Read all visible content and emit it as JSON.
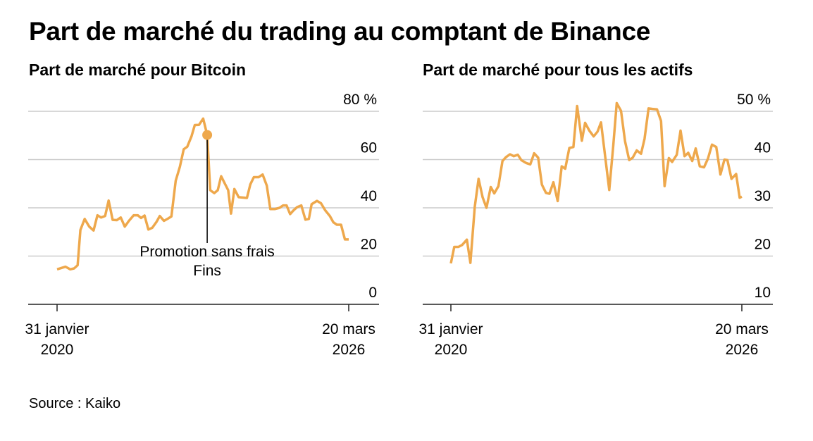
{
  "title": "Part de marché du trading au comptant de Binance",
  "source": "Source : Kaiko",
  "line_color": "#eea84c",
  "chart_data": [
    {
      "type": "line",
      "title": "Part de marché pour Bitcoin",
      "ylim": [
        0,
        80
      ],
      "yticks": [
        0,
        20,
        40,
        60,
        80
      ],
      "ytick_labels": [
        "0",
        "20",
        "40",
        "60",
        "80 %"
      ],
      "grid": true,
      "xlim": [
        "2020-01-31",
        "2026-03-20"
      ],
      "xtick_labels": [
        {
          "date": "2020-01-31",
          "line1": "31 janvier",
          "line2": "2020"
        },
        {
          "date": "2026-03-20",
          "line1": "20 mars",
          "line2": "2026"
        }
      ],
      "annotation": {
        "date": "2023-03-29",
        "value": 70.2,
        "line1": "Promotion sans frais",
        "line2": "Fins"
      },
      "x": [
        "2020-01-31",
        "2020-04-05",
        "2020-05-11",
        "2020-06-10",
        "2020-07-07",
        "2020-07-28",
        "2020-08-30",
        "2020-10-04",
        "2020-11-06",
        "2020-12-06",
        "2021-01-03",
        "2021-02-03",
        "2021-03-02",
        "2021-04-02",
        "2021-05-04",
        "2021-06-03",
        "2021-07-04",
        "2021-08-05",
        "2021-09-10",
        "2021-10-12",
        "2021-11-06",
        "2021-12-03",
        "2022-01-01",
        "2022-01-31",
        "2022-03-05",
        "2022-03-30",
        "2022-05-01",
        "2022-06-02",
        "2022-06-27",
        "2022-07-30",
        "2022-08-31",
        "2022-09-30",
        "2022-10-27",
        "2022-11-29",
        "2022-12-24",
        "2023-01-25",
        "2023-02-26",
        "2023-03-29",
        "2023-04-21",
        "2023-05-22",
        "2023-06-18",
        "2023-07-14",
        "2023-08-10",
        "2023-09-06",
        "2023-09-28",
        "2023-10-24",
        "2023-11-26",
        "2024-01-28",
        "2024-02-23",
        "2024-03-21",
        "2024-04-27",
        "2024-05-28",
        "2024-06-29",
        "2024-07-26",
        "2024-08-31",
        "2024-10-05",
        "2024-11-01",
        "2024-11-28",
        "2024-12-25",
        "2025-01-21",
        "2025-02-17",
        "2025-03-21",
        "2025-04-21",
        "2025-05-18",
        "2025-06-08",
        "2025-07-19",
        "2025-08-19",
        "2025-09-20",
        "2025-10-26",
        "2025-11-22",
        "2025-12-19",
        "2026-01-20",
        "2026-02-19",
        "2026-03-20"
      ],
      "y": [
        14.5,
        15.6,
        14.5,
        14.9,
        16.2,
        30.8,
        35.4,
        32.2,
        30.6,
        36.9,
        36.0,
        36.6,
        43.0,
        35.0,
        34.9,
        36.0,
        32.2,
        34.6,
        36.9,
        36.9,
        35.8,
        36.8,
        31.0,
        31.7,
        34.2,
        36.6,
        34.6,
        35.6,
        36.4,
        51.2,
        57.0,
        64.3,
        65.3,
        69.7,
        74.3,
        74.4,
        77.0,
        70.2,
        47.3,
        46.1,
        47.3,
        53.1,
        50.2,
        47.3,
        37.6,
        47.8,
        44.4,
        44.1,
        49.7,
        52.7,
        52.7,
        53.8,
        49.2,
        39.5,
        39.5,
        40.0,
        41.0,
        41.0,
        37.4,
        39.0,
        40.3,
        41.0,
        35.1,
        35.4,
        41.5,
        42.9,
        41.9,
        39.0,
        36.6,
        34.0,
        33.0,
        33.0,
        26.9,
        26.9
      ]
    },
    {
      "type": "line",
      "title": "Part de marché pour tous les actifs",
      "ylim": [
        10,
        50
      ],
      "yticks": [
        10,
        20,
        30,
        40,
        50
      ],
      "ytick_labels": [
        "10",
        "20",
        "30",
        "40",
        "50 %"
      ],
      "grid": true,
      "xlim": [
        "2020-01-31",
        "2026-03-20"
      ],
      "xtick_labels": [
        {
          "date": "2020-01-31",
          "line1": "31 janvier",
          "line2": "2020"
        },
        {
          "date": "2026-03-20",
          "line1": "20 mars",
          "line2": "2026"
        }
      ],
      "x": [
        "2020-01-31",
        "2020-02-26",
        "2020-03-29",
        "2020-04-27",
        "2020-06-02",
        "2020-06-29",
        "2020-08-02",
        "2020-08-31",
        "2020-10-01",
        "2020-10-31",
        "2020-12-03",
        "2020-12-30",
        "2021-01-31",
        "2021-03-03",
        "2021-03-30",
        "2021-04-30",
        "2021-05-29",
        "2021-06-29",
        "2021-07-26",
        "2021-08-31",
        "2021-10-03",
        "2021-11-02",
        "2021-12-03",
        "2022-01-01",
        "2022-02-01",
        "2022-02-28",
        "2022-03-30",
        "2022-05-02",
        "2022-06-02",
        "2022-06-29",
        "2022-07-31",
        "2022-08-31",
        "2022-09-29",
        "2022-11-04",
        "2022-11-29",
        "2023-01-01",
        "2023-02-03",
        "2023-03-05",
        "2023-04-01",
        "2023-05-04",
        "2023-06-03",
        "2023-07-04",
        "2023-07-31",
        "2023-09-02",
        "2023-10-03",
        "2023-11-04",
        "2023-12-01",
        "2024-01-01",
        "2024-02-03",
        "2024-03-01",
        "2024-04-01",
        "2024-04-30",
        "2024-06-05",
        "2024-07-06",
        "2024-08-02",
        "2024-09-04",
        "2024-09-29",
        "2024-11-04",
        "2024-12-03",
        "2025-01-03",
        "2025-01-31",
        "2025-03-03",
        "2025-03-30",
        "2025-04-30",
        "2025-06-02",
        "2025-07-02",
        "2025-08-02",
        "2025-09-04",
        "2025-10-06",
        "2025-11-06",
        "2025-11-29",
        "2025-12-30",
        "2026-02-04",
        "2026-03-03",
        "2026-03-20"
      ],
      "y": [
        18.5,
        21.9,
        21.9,
        22.3,
        23.4,
        18.6,
        30.2,
        36.0,
        32.2,
        30.0,
        34.3,
        33.0,
        34.5,
        39.7,
        40.5,
        41.1,
        40.7,
        41.0,
        39.9,
        39.3,
        39.0,
        41.3,
        40.4,
        34.8,
        33.1,
        32.9,
        35.3,
        31.4,
        38.6,
        38.1,
        42.4,
        42.6,
        51.1,
        43.9,
        47.6,
        46.0,
        44.8,
        45.8,
        47.7,
        40.4,
        33.7,
        42.9,
        51.7,
        50.1,
        43.8,
        39.9,
        40.4,
        41.9,
        41.2,
        44.3,
        50.6,
        50.5,
        50.4,
        48.0,
        34.5,
        40.3,
        39.5,
        41.0,
        46.0,
        40.7,
        41.4,
        39.7,
        42.3,
        38.6,
        38.4,
        40.2,
        43.1,
        42.6,
        36.9,
        40.0,
        39.9,
        36.0,
        37.0,
        32.1,
        32.3
      ]
    }
  ]
}
